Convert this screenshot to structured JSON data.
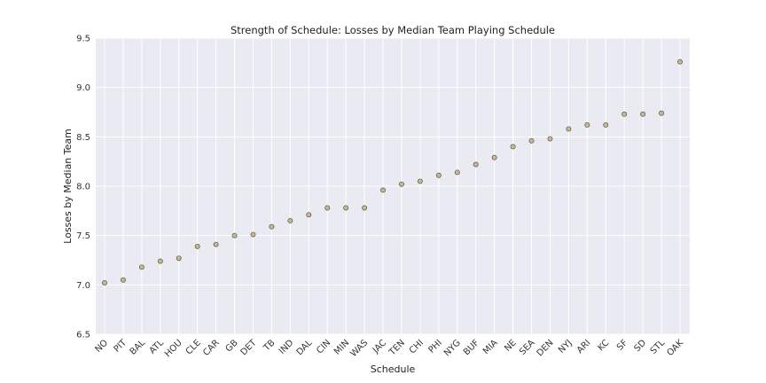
{
  "chart_data": {
    "type": "scatter",
    "title": "Strength of Schedule: Losses by Median Team Playing Schedule",
    "xlabel": "Schedule",
    "ylabel": "Losses by Median Team",
    "ylim": [
      6.5,
      9.5
    ],
    "yticks": [
      "6.5",
      "7.0",
      "7.5",
      "8.0",
      "8.5",
      "9.0",
      "9.5"
    ],
    "grid": true,
    "categories": [
      "NO",
      "PIT",
      "BAL",
      "ATL",
      "HOU",
      "CLE",
      "CAR",
      "GB",
      "DET",
      "TB",
      "IND",
      "DAL",
      "CIN",
      "MIN",
      "WAS",
      "JAC",
      "TEN",
      "CHI",
      "PHI",
      "NYG",
      "BUF",
      "MIA",
      "NE",
      "SEA",
      "DEN",
      "NYJ",
      "ARI",
      "KC",
      "SF",
      "SD",
      "STL",
      "OAK"
    ],
    "values": [
      7.02,
      7.05,
      7.18,
      7.24,
      7.27,
      7.39,
      7.41,
      7.5,
      7.51,
      7.59,
      7.65,
      7.71,
      7.78,
      7.78,
      7.78,
      7.96,
      8.02,
      8.05,
      8.11,
      8.14,
      8.22,
      8.29,
      8.4,
      8.46,
      8.48,
      8.58,
      8.62,
      8.62,
      8.73,
      8.73,
      8.74,
      9.26
    ],
    "colors": {
      "background": "#eaeaf2",
      "grid": "#ffffff",
      "marker_fill": "#c8b98a",
      "marker_edge": "#555555"
    }
  }
}
